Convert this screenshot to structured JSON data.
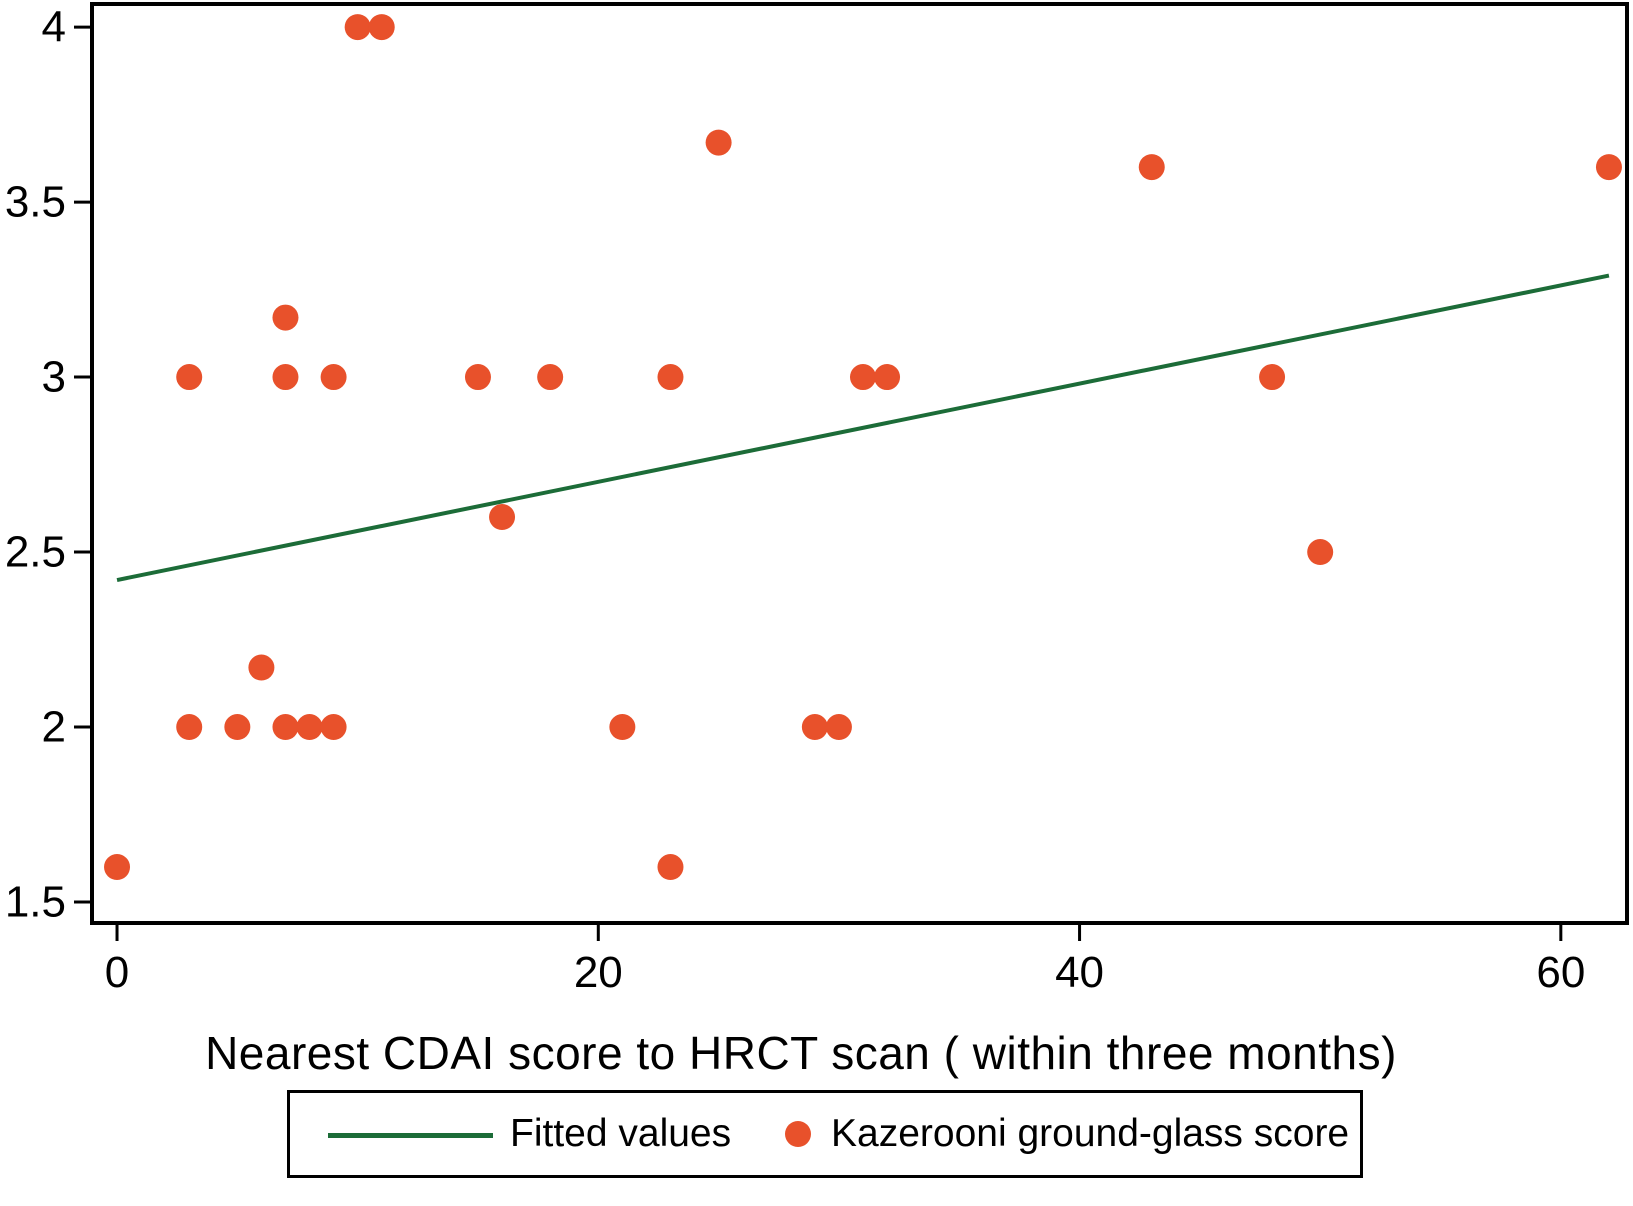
{
  "chart_data": {
    "type": "scatter",
    "title": "",
    "xlabel": "Nearest CDAI score to HRCT scan ( within three months)",
    "ylabel": "",
    "x_ticks": {
      "values": [
        0,
        20,
        40,
        60
      ],
      "labels": [
        "0",
        "20",
        "40",
        "60"
      ]
    },
    "y_ticks": {
      "values": [
        4,
        3.5,
        3,
        2.5,
        2,
        1.5
      ],
      "labels": [
        "4",
        "3.5",
        "3",
        "2.5",
        "2",
        "1.5"
      ]
    },
    "xlim": [
      -1.04,
      62.75
    ],
    "ylim": [
      1.44,
      4.066
    ],
    "grid": false,
    "legend": {
      "position": "bottom-center",
      "border": true
    },
    "series": [
      {
        "name": "Fitted values",
        "type": "line",
        "color": "#1C6C38",
        "x": [
          0,
          62
        ],
        "y": [
          2.42,
          3.29
        ]
      },
      {
        "name": "Kazerooni ground-glass score",
        "type": "scatter",
        "color": "#E8512B",
        "points": [
          [
            0,
            1.6
          ],
          [
            3,
            2
          ],
          [
            3,
            3
          ],
          [
            5,
            2
          ],
          [
            6,
            2.17
          ],
          [
            7,
            2
          ],
          [
            7,
            3
          ],
          [
            7,
            3.17
          ],
          [
            8,
            2
          ],
          [
            9,
            2
          ],
          [
            9,
            3
          ],
          [
            10,
            4
          ],
          [
            11,
            4
          ],
          [
            15,
            3
          ],
          [
            16,
            2.6
          ],
          [
            18,
            3
          ],
          [
            21,
            2
          ],
          [
            23,
            1.6
          ],
          [
            23,
            3
          ],
          [
            25,
            3.67
          ],
          [
            29,
            2
          ],
          [
            30,
            2
          ],
          [
            31,
            3
          ],
          [
            32,
            3
          ],
          [
            43,
            3.6
          ],
          [
            48,
            3
          ],
          [
            50,
            2.5
          ],
          [
            62,
            3.6
          ]
        ]
      }
    ]
  },
  "colors": {
    "background": "#FFFFFF",
    "axis": "#000000",
    "text": "#000000",
    "fitted_line": "#1C6C38",
    "scatter_marker": "#E8512B"
  }
}
